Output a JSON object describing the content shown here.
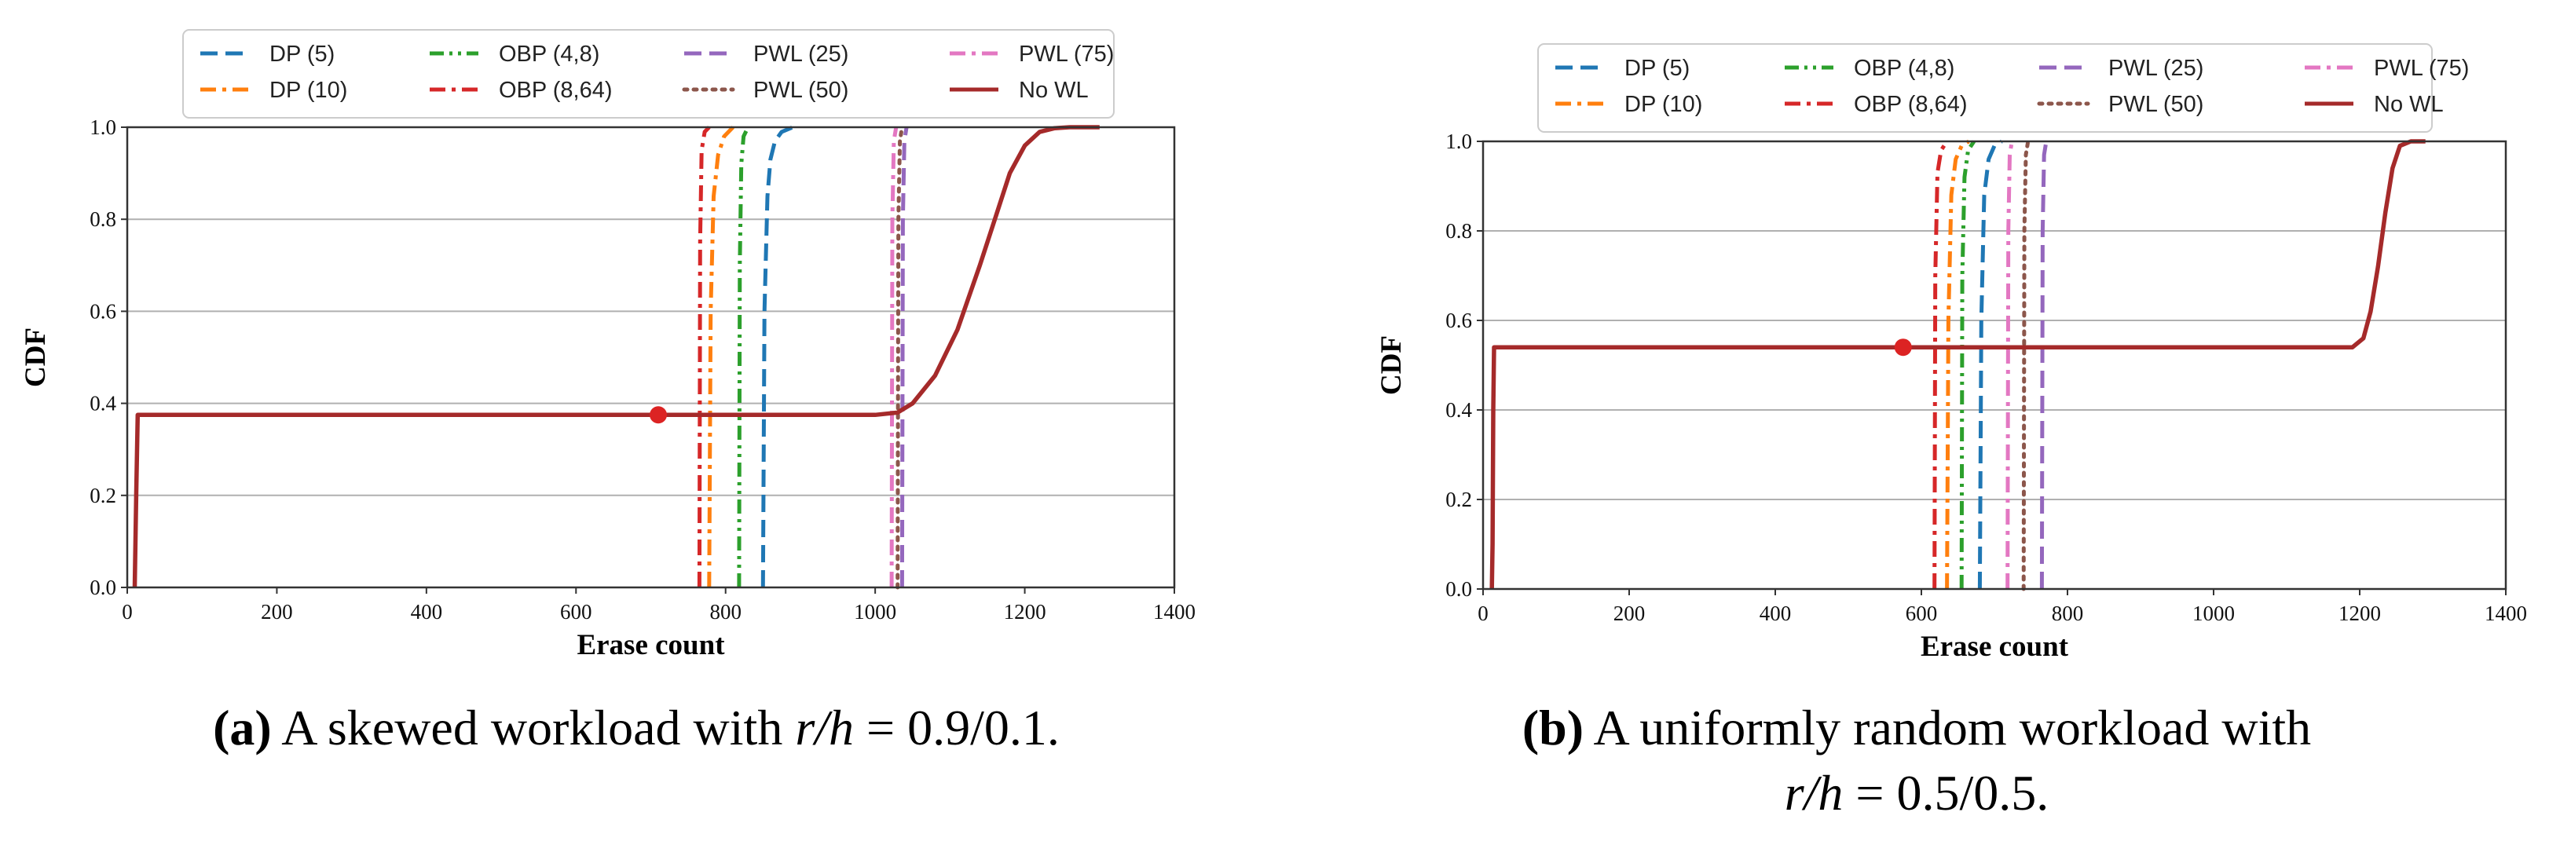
{
  "colors": {
    "DP (5)": "#1f77b4",
    "DP (10)": "#ff7f0e",
    "OBP (4,8)": "#2ca02c",
    "OBP (8,64)": "#d62728",
    "PWL (25)": "#9467bd",
    "PWL (50)": "#8c564b",
    "PWL (75)": "#e377c2",
    "No WL": "#a52a2a",
    "grid": "#b0b0b0",
    "marker": "#dc2323"
  },
  "chart_data": [
    {
      "type": "line",
      "panel": "a",
      "title": "",
      "xlabel": "Erase count",
      "ylabel": "CDF",
      "xlim": [
        0,
        1400
      ],
      "ylim": [
        0,
        1.0
      ],
      "xticks": [
        "0",
        "200",
        "400",
        "600",
        "800",
        "1000",
        "1200",
        "1400"
      ],
      "yticks": [
        "0.0",
        "0.2",
        "0.4",
        "0.6",
        "0.8",
        "1.0"
      ],
      "grid": "horizontal",
      "legend": [
        "DP (5)",
        "DP (10)",
        "OBP (4,8)",
        "OBP (8,64)",
        "PWL (25)",
        "PWL (50)",
        "PWL (75)",
        "No WL"
      ],
      "series": [
        {
          "name": "DP (5)",
          "style": "dashed",
          "x": [
            850,
            852,
            856,
            860,
            866,
            875,
            890
          ],
          "y": [
            0,
            0.6,
            0.85,
            0.93,
            0.97,
            0.99,
            1.0
          ]
        },
        {
          "name": "DP (10)",
          "style": "dashdot",
          "x": [
            778,
            780,
            784,
            790,
            798,
            810
          ],
          "y": [
            0,
            0.6,
            0.85,
            0.94,
            0.98,
            1.0
          ]
        },
        {
          "name": "OBP (4,8)",
          "style": "dashdotdot",
          "x": [
            818,
            819,
            821,
            824,
            830
          ],
          "y": [
            0,
            0.7,
            0.92,
            0.98,
            1.0
          ]
        },
        {
          "name": "OBP (8,64)",
          "style": "dashdot",
          "x": [
            765,
            766,
            768,
            772,
            778
          ],
          "y": [
            0,
            0.75,
            0.95,
            0.99,
            1.0
          ]
        },
        {
          "name": "PWL (25)",
          "style": "dashed",
          "x": [
            1036,
            1037,
            1039,
            1042
          ],
          "y": [
            0,
            0.8,
            0.97,
            1.0
          ]
        },
        {
          "name": "PWL (50)",
          "style": "dotted",
          "x": [
            1030,
            1031,
            1033,
            1036
          ],
          "y": [
            0,
            0.8,
            0.97,
            1.0
          ]
        },
        {
          "name": "PWL (75)",
          "style": "dashdot",
          "x": [
            1022,
            1023,
            1025,
            1028
          ],
          "y": [
            0,
            0.8,
            0.97,
            1.0
          ]
        },
        {
          "name": "No WL",
          "style": "solid",
          "x": [
            10,
            12,
            14,
            1000,
            1030,
            1050,
            1080,
            1110,
            1140,
            1160,
            1180,
            1200,
            1220,
            1240,
            1260,
            1300
          ],
          "y": [
            0,
            0.2,
            0.375,
            0.375,
            0.38,
            0.4,
            0.46,
            0.56,
            0.7,
            0.8,
            0.9,
            0.96,
            0.99,
            0.998,
            1.0,
            1.0
          ]
        }
      ],
      "marker": {
        "x": 710,
        "y": 0.375
      }
    },
    {
      "type": "line",
      "panel": "b",
      "title": "",
      "xlabel": "Erase count",
      "ylabel": "CDF",
      "xlim": [
        0,
        1400
      ],
      "ylim": [
        0,
        1.0
      ],
      "xticks": [
        "0",
        "200",
        "400",
        "600",
        "800",
        "1000",
        "1200",
        "1400"
      ],
      "yticks": [
        "0.0",
        "0.2",
        "0.4",
        "0.6",
        "0.8",
        "1.0"
      ],
      "grid": "horizontal",
      "legend": [
        "DP (5)",
        "DP (10)",
        "OBP (4,8)",
        "OBP (8,64)",
        "PWL (25)",
        "PWL (50)",
        "PWL (75)",
        "No WL"
      ],
      "series": [
        {
          "name": "DP (5)",
          "style": "dashed",
          "x": [
            680,
            682,
            686,
            692,
            700,
            710
          ],
          "y": [
            0,
            0.6,
            0.88,
            0.96,
            0.99,
            1.0
          ]
        },
        {
          "name": "DP (10)",
          "style": "dashdot",
          "x": [
            635,
            637,
            641,
            647,
            655,
            665
          ],
          "y": [
            0,
            0.6,
            0.88,
            0.96,
            0.99,
            1.0
          ]
        },
        {
          "name": "OBP (4,8)",
          "style": "dashdotdot",
          "x": [
            655,
            656,
            659,
            664,
            672
          ],
          "y": [
            0,
            0.7,
            0.92,
            0.98,
            1.0
          ]
        },
        {
          "name": "OBP (8,64)",
          "style": "dashdot",
          "x": [
            618,
            619,
            622,
            627,
            635
          ],
          "y": [
            0,
            0.7,
            0.93,
            0.98,
            1.0
          ]
        },
        {
          "name": "PWL (25)",
          "style": "dashed",
          "x": [
            765,
            766,
            768,
            771
          ],
          "y": [
            0,
            0.8,
            0.97,
            1.0
          ]
        },
        {
          "name": "PWL (50)",
          "style": "dotted",
          "x": [
            740,
            741,
            743,
            746
          ],
          "y": [
            0,
            0.8,
            0.97,
            1.0
          ]
        },
        {
          "name": "PWL (75)",
          "style": "dashdot",
          "x": [
            718,
            719,
            721,
            724
          ],
          "y": [
            0,
            0.8,
            0.97,
            1.0
          ]
        },
        {
          "name": "No WL",
          "style": "solid",
          "x": [
            12,
            13,
            14,
            15,
            1190,
            1205,
            1215,
            1225,
            1235,
            1245,
            1255,
            1270,
            1290
          ],
          "y": [
            0,
            0.1,
            0.4,
            0.54,
            0.54,
            0.56,
            0.62,
            0.72,
            0.84,
            0.94,
            0.99,
            1.0,
            1.0
          ]
        }
      ],
      "marker": {
        "x": 575,
        "y": 0.54
      }
    }
  ],
  "captions": [
    {
      "label": "(a)",
      "line1": "A skewed workload with ",
      "math": "r/h",
      "eq": " = 0.9/0.1."
    },
    {
      "label": "(b)",
      "line1": "A uniformly random workload with",
      "math": "r/h",
      "eq": " = 0.5/0.5."
    }
  ]
}
